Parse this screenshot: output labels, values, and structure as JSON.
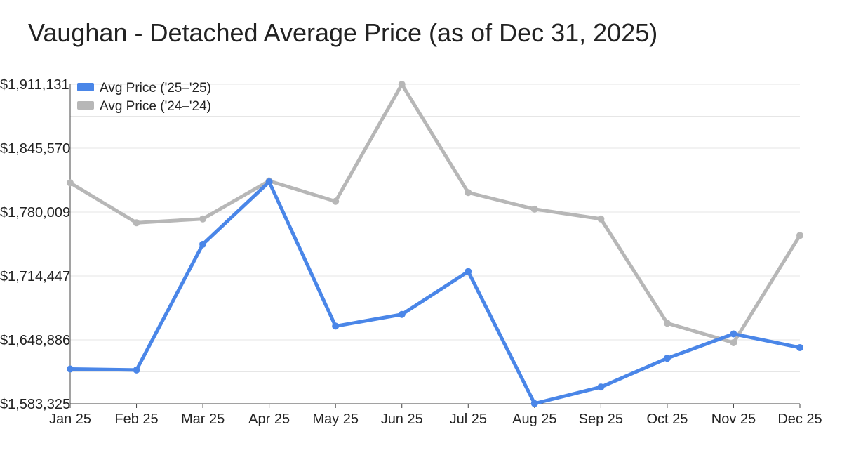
{
  "chart_data": {
    "type": "line",
    "title": "Vaughan - Detached Average Price (as of Dec 31, 2025)",
    "xlabel": "",
    "ylabel": "",
    "categories": [
      "Jan 25",
      "Feb 25",
      "Mar 25",
      "Apr 25",
      "May 25",
      "Jun 25",
      "Jul 25",
      "Aug 25",
      "Sep 25",
      "Oct 25",
      "Nov 25",
      "Dec 25"
    ],
    "ylim": [
      1583325,
      1911131
    ],
    "yticks": [
      1583325,
      1648886,
      1714447,
      1780009,
      1845570,
      1911131
    ],
    "ytick_labels": [
      "$1,583,325",
      "$1,648,886",
      "$1,714,447",
      "$1,780,009",
      "$1,845,570",
      "$1,911,131"
    ],
    "grid": true,
    "legend_position": "top-left",
    "series": [
      {
        "name": "Avg Price ('25–'25)",
        "color": "#4a86e8",
        "values": [
          1619000,
          1618000,
          1747000,
          1811000,
          1663000,
          1675000,
          1719000,
          1583500,
          1600500,
          1630000,
          1655000,
          1641000
        ]
      },
      {
        "name": "Avg Price ('24–'24)",
        "color": "#b7b7b7",
        "values": [
          1810000,
          1769000,
          1773000,
          1812000,
          1791000,
          1911000,
          1800000,
          1783000,
          1773000,
          1666000,
          1646000,
          1756000
        ]
      }
    ]
  }
}
